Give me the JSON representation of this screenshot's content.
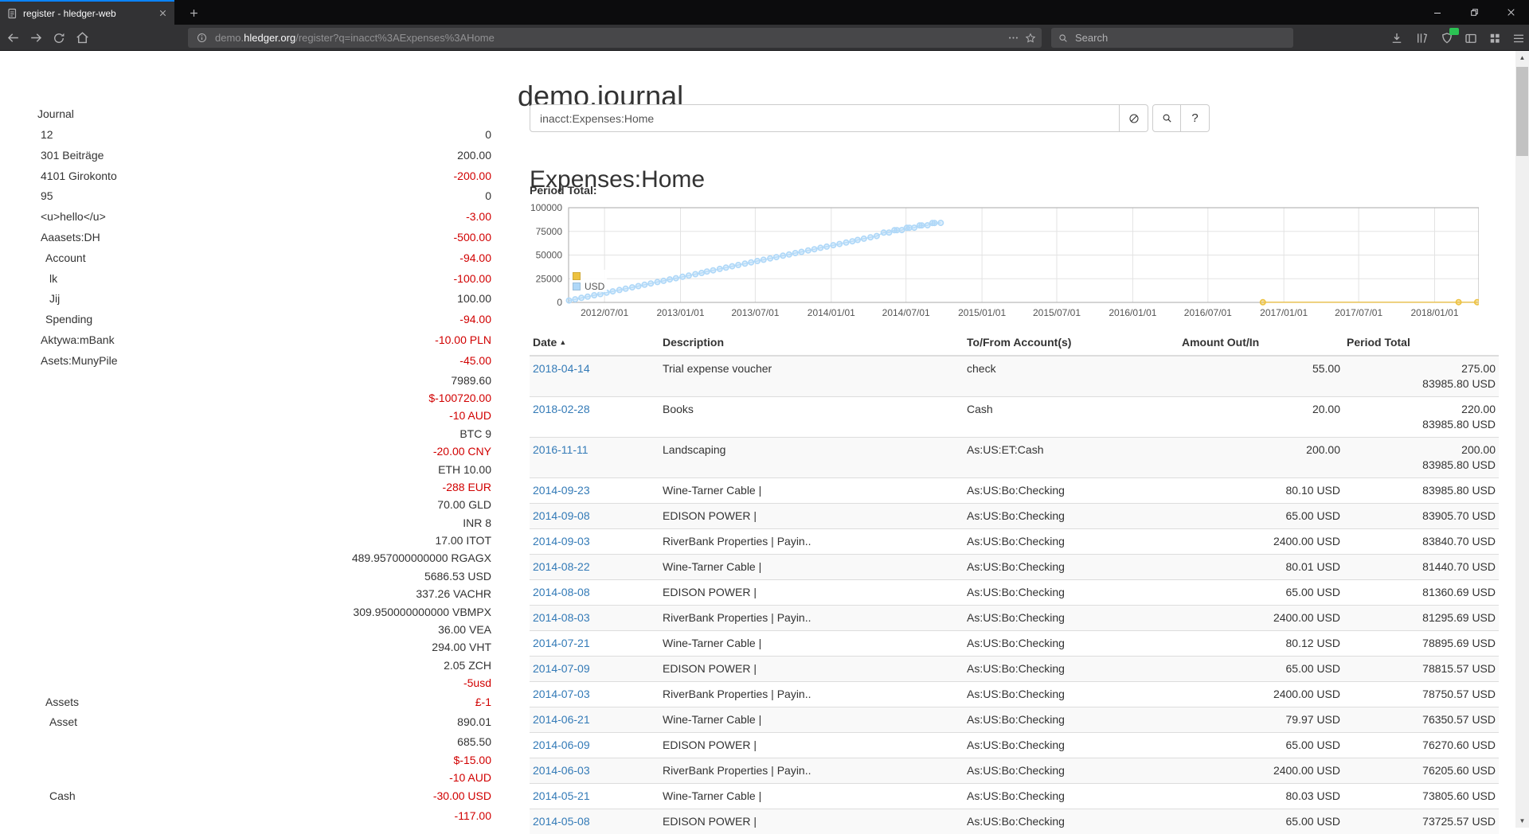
{
  "browser": {
    "tab_title": "register - hledger-web",
    "url_prefix": "demo.",
    "url_domain": "hledger.org",
    "url_path": "/register?q=inacct%3AExpenses%3AHome",
    "search_placeholder": "Search",
    "icons": [
      "back-icon",
      "forward-icon",
      "reload-icon",
      "home-icon",
      "info-icon",
      "page-actions-icon",
      "bookmark-star-icon",
      "search-icon",
      "download-icon",
      "library-icon",
      "extension-icon",
      "sidebar-icon",
      "grid-icon",
      "menu-icon",
      "minimize-icon",
      "restore-icon",
      "close-icon",
      "new-tab-icon",
      "tab-close-icon"
    ]
  },
  "page": {
    "title": "demo.journal",
    "sidebar_heading": "Journal",
    "accounts": [
      {
        "name": "12",
        "depth": 1,
        "amount": "0"
      },
      {
        "name": "301 Beiträge",
        "depth": 1,
        "amount": "200.00"
      },
      {
        "name": "4101 Girokonto",
        "depth": 1,
        "amount": "-200.00"
      },
      {
        "name": "95",
        "depth": 1,
        "amount": "0"
      },
      {
        "name": "<u>hello</u>",
        "depth": 1,
        "amount": "-3.00"
      },
      {
        "name": "Aaasets:DH",
        "depth": 1,
        "amount": "-500.00"
      },
      {
        "name": "Account",
        "depth": 2,
        "amount": "-94.00"
      },
      {
        "name": "lk",
        "depth": 3,
        "amount": "-100.00"
      },
      {
        "name": "Jij",
        "depth": 3,
        "amount": "100.00"
      },
      {
        "name": "Spending",
        "depth": 2,
        "amount": "-94.00"
      },
      {
        "name": "Aktywa:mBank",
        "depth": 1,
        "amount": "-10.00 PLN"
      },
      {
        "name": "Asets:MunyPile",
        "depth": 1,
        "amount": "-45.00"
      },
      {
        "name": "",
        "amount": "7989.60"
      },
      {
        "name": "",
        "amount": "$-100720.00"
      },
      {
        "name": "",
        "amount": "-10 AUD"
      },
      {
        "name": "",
        "amount": "BTC 9"
      },
      {
        "name": "",
        "amount": "-20.00 CNY"
      },
      {
        "name": "",
        "amount": "ETH 10.00"
      },
      {
        "name": "",
        "amount": "-288 EUR"
      },
      {
        "name": "",
        "amount": "70.00 GLD"
      },
      {
        "name": "",
        "amount": "INR 8"
      },
      {
        "name": "",
        "amount": "17.00 ITOT"
      },
      {
        "name": "",
        "amount": "489.957000000000 RGAGX"
      },
      {
        "name": "",
        "amount": "5686.53 USD"
      },
      {
        "name": "",
        "amount": "337.26 VACHR"
      },
      {
        "name": "",
        "amount": "309.950000000000 VBMPX"
      },
      {
        "name": "",
        "amount": "36.00 VEA"
      },
      {
        "name": "",
        "amount": "294.00 VHT"
      },
      {
        "name": "",
        "amount": "2.05 ZCH"
      },
      {
        "name": "",
        "amount": "-5usd"
      },
      {
        "name": "Assets",
        "depth": 2,
        "amount": "£-1"
      },
      {
        "name": "Asset",
        "depth": 3,
        "amount": "890.01"
      },
      {
        "name": "",
        "amount": "685.50"
      },
      {
        "name": "",
        "amount": "$-15.00"
      },
      {
        "name": "",
        "amount": "-10 AUD"
      },
      {
        "name": "Cash",
        "depth": 3,
        "amount": "-30.00 USD"
      },
      {
        "name": "",
        "amount": "-117.00"
      }
    ],
    "search_query": "inacct:Expenses:Home",
    "help_label": "?",
    "heading": "Expenses:Home",
    "period_total_label": "Period Total:",
    "register": {
      "columns": [
        "Date",
        "Description",
        "To/From Account(s)",
        "Amount Out/In",
        "Period Total"
      ],
      "rows": [
        {
          "date": "2018-04-14",
          "description": "Trial expense voucher",
          "account": "check",
          "amount": "55.00",
          "total": [
            "275.00",
            "83985.80 USD"
          ]
        },
        {
          "date": "2018-02-28",
          "description": "Books",
          "account": "Cash",
          "amount": "20.00",
          "total": [
            "220.00",
            "83985.80 USD"
          ]
        },
        {
          "date": "2016-11-11",
          "description": "Landscaping",
          "account": "As:US:ET:Cash",
          "amount": "200.00",
          "total": [
            "200.00",
            "83985.80 USD"
          ]
        },
        {
          "date": "2014-09-23",
          "description": "Wine-Tarner Cable |",
          "account": "As:US:Bo:Checking",
          "amount": "80.10 USD",
          "total": [
            "83985.80 USD"
          ]
        },
        {
          "date": "2014-09-08",
          "description": "EDISON POWER |",
          "account": "As:US:Bo:Checking",
          "amount": "65.00 USD",
          "total": [
            "83905.70 USD"
          ]
        },
        {
          "date": "2014-09-03",
          "description": "RiverBank Properties | Payin..",
          "account": "As:US:Bo:Checking",
          "amount": "2400.00 USD",
          "total": [
            "83840.70 USD"
          ]
        },
        {
          "date": "2014-08-22",
          "description": "Wine-Tarner Cable |",
          "account": "As:US:Bo:Checking",
          "amount": "80.01 USD",
          "total": [
            "81440.70 USD"
          ]
        },
        {
          "date": "2014-08-08",
          "description": "EDISON POWER |",
          "account": "As:US:Bo:Checking",
          "amount": "65.00 USD",
          "total": [
            "81360.69 USD"
          ]
        },
        {
          "date": "2014-08-03",
          "description": "RiverBank Properties | Payin..",
          "account": "As:US:Bo:Checking",
          "amount": "2400.00 USD",
          "total": [
            "81295.69 USD"
          ]
        },
        {
          "date": "2014-07-21",
          "description": "Wine-Tarner Cable |",
          "account": "As:US:Bo:Checking",
          "amount": "80.12 USD",
          "total": [
            "78895.69 USD"
          ]
        },
        {
          "date": "2014-07-09",
          "description": "EDISON POWER |",
          "account": "As:US:Bo:Checking",
          "amount": "65.00 USD",
          "total": [
            "78815.57 USD"
          ]
        },
        {
          "date": "2014-07-03",
          "description": "RiverBank Properties | Payin..",
          "account": "As:US:Bo:Checking",
          "amount": "2400.00 USD",
          "total": [
            "78750.57 USD"
          ]
        },
        {
          "date": "2014-06-21",
          "description": "Wine-Tarner Cable |",
          "account": "As:US:Bo:Checking",
          "amount": "79.97 USD",
          "total": [
            "76350.57 USD"
          ]
        },
        {
          "date": "2014-06-09",
          "description": "EDISON POWER |",
          "account": "As:US:Bo:Checking",
          "amount": "65.00 USD",
          "total": [
            "76270.60 USD"
          ]
        },
        {
          "date": "2014-06-03",
          "description": "RiverBank Properties | Payin..",
          "account": "As:US:Bo:Checking",
          "amount": "2400.00 USD",
          "total": [
            "76205.60 USD"
          ]
        },
        {
          "date": "2014-05-21",
          "description": "Wine-Tarner Cable |",
          "account": "As:US:Bo:Checking",
          "amount": "80.03 USD",
          "total": [
            "73805.60 USD"
          ]
        },
        {
          "date": "2014-05-08",
          "description": "EDISON POWER |",
          "account": "As:US:Bo:Checking",
          "amount": "65.00 USD",
          "total": [
            "73725.57 USD"
          ]
        }
      ]
    }
  },
  "chart_data": {
    "type": "line",
    "title": "Period Total:",
    "xmin": "2012-04-05",
    "xmax": "2018-04-18",
    "ylim": [
      0,
      100000
    ],
    "yticks": [
      0,
      25000,
      50000,
      75000,
      100000
    ],
    "xticks": [
      {
        "date": "2012-07-01",
        "label": "2012/07/01"
      },
      {
        "date": "2013-01-01",
        "label": "2013/01/01"
      },
      {
        "date": "2013-07-01",
        "label": "2013/07/01"
      },
      {
        "date": "2014-01-01",
        "label": "2014/01/01"
      },
      {
        "date": "2014-07-01",
        "label": "2014/07/01"
      },
      {
        "date": "2015-01-01",
        "label": "2015/01/01"
      },
      {
        "date": "2015-07-01",
        "label": "2015/07/01"
      },
      {
        "date": "2016-01-01",
        "label": "2016/01/01"
      },
      {
        "date": "2016-07-01",
        "label": "2016/07/01"
      },
      {
        "date": "2017-01-01",
        "label": "2017/01/01"
      },
      {
        "date": "2017-07-01",
        "label": "2017/07/01"
      },
      {
        "date": "2018-01-01",
        "label": "2018/01/01"
      }
    ],
    "grid": true,
    "legend_position": "bottom-left-inside",
    "series": [
      {
        "name": "",
        "color": "#edc240",
        "fill": "rgba(237,194,64,0.45)",
        "points": [
          [
            "2016-11-11",
            200
          ],
          [
            "2018-02-28",
            220
          ],
          [
            "2018-04-14",
            275
          ]
        ]
      },
      {
        "name": "USD",
        "color": "#afd8f8",
        "fill": "rgba(175,216,248,0.40)",
        "points": [
          [
            "2012-04-06",
            2000
          ],
          [
            "2012-04-21",
            3300
          ],
          [
            "2012-05-06",
            4782
          ],
          [
            "2012-05-21",
            6082
          ],
          [
            "2012-06-06",
            7564
          ],
          [
            "2012-06-21",
            8864
          ],
          [
            "2012-07-06",
            10346
          ],
          [
            "2012-07-21",
            11646
          ],
          [
            "2012-08-06",
            13128
          ],
          [
            "2012-08-21",
            14428
          ],
          [
            "2012-09-06",
            15910
          ],
          [
            "2012-09-21",
            17210
          ],
          [
            "2012-10-06",
            18692
          ],
          [
            "2012-10-21",
            19992
          ],
          [
            "2012-11-06",
            21474
          ],
          [
            "2012-11-21",
            22774
          ],
          [
            "2012-12-06",
            24256
          ],
          [
            "2012-12-21",
            25556
          ],
          [
            "2013-01-06",
            27038
          ],
          [
            "2013-01-21",
            28338
          ],
          [
            "2013-02-06",
            29820
          ],
          [
            "2013-02-21",
            31120
          ],
          [
            "2013-03-06",
            32602
          ],
          [
            "2013-03-21",
            33902
          ],
          [
            "2013-04-06",
            35384
          ],
          [
            "2013-04-21",
            36684
          ],
          [
            "2013-05-06",
            38166
          ],
          [
            "2013-05-21",
            39466
          ],
          [
            "2013-06-06",
            40948
          ],
          [
            "2013-06-21",
            42248
          ],
          [
            "2013-07-06",
            43730
          ],
          [
            "2013-07-21",
            45030
          ],
          [
            "2013-08-06",
            46512
          ],
          [
            "2013-08-21",
            47812
          ],
          [
            "2013-09-06",
            49294
          ],
          [
            "2013-09-21",
            50594
          ],
          [
            "2013-10-06",
            52076
          ],
          [
            "2013-10-21",
            53376
          ],
          [
            "2013-11-06",
            54858
          ],
          [
            "2013-11-21",
            56158
          ],
          [
            "2013-12-06",
            57640
          ],
          [
            "2013-12-21",
            58940
          ],
          [
            "2014-01-06",
            60422
          ],
          [
            "2014-01-21",
            61722
          ],
          [
            "2014-02-06",
            63204
          ],
          [
            "2014-02-21",
            64504
          ],
          [
            "2014-03-06",
            65986
          ],
          [
            "2014-03-21",
            67286
          ],
          [
            "2014-04-06",
            68768
          ],
          [
            "2014-04-21",
            70068
          ],
          [
            "2014-05-08",
            73725.57
          ],
          [
            "2014-05-21",
            73805.6
          ],
          [
            "2014-06-03",
            76205.6
          ],
          [
            "2014-06-09",
            76270.6
          ],
          [
            "2014-06-21",
            76350.57
          ],
          [
            "2014-07-03",
            78750.57
          ],
          [
            "2014-07-09",
            78815.57
          ],
          [
            "2014-07-21",
            78895.69
          ],
          [
            "2014-08-03",
            81295.69
          ],
          [
            "2014-08-08",
            81360.69
          ],
          [
            "2014-08-22",
            81440.7
          ],
          [
            "2014-09-03",
            83840.7
          ],
          [
            "2014-09-08",
            83905.7
          ],
          [
            "2014-09-23",
            83985.8
          ]
        ]
      }
    ]
  },
  "colors": {
    "negative": "#d10000",
    "link": "#337ab7",
    "tab_accent": "#0a84ff",
    "series_yellow": "#edc240",
    "series_blue": "#afd8f8"
  }
}
